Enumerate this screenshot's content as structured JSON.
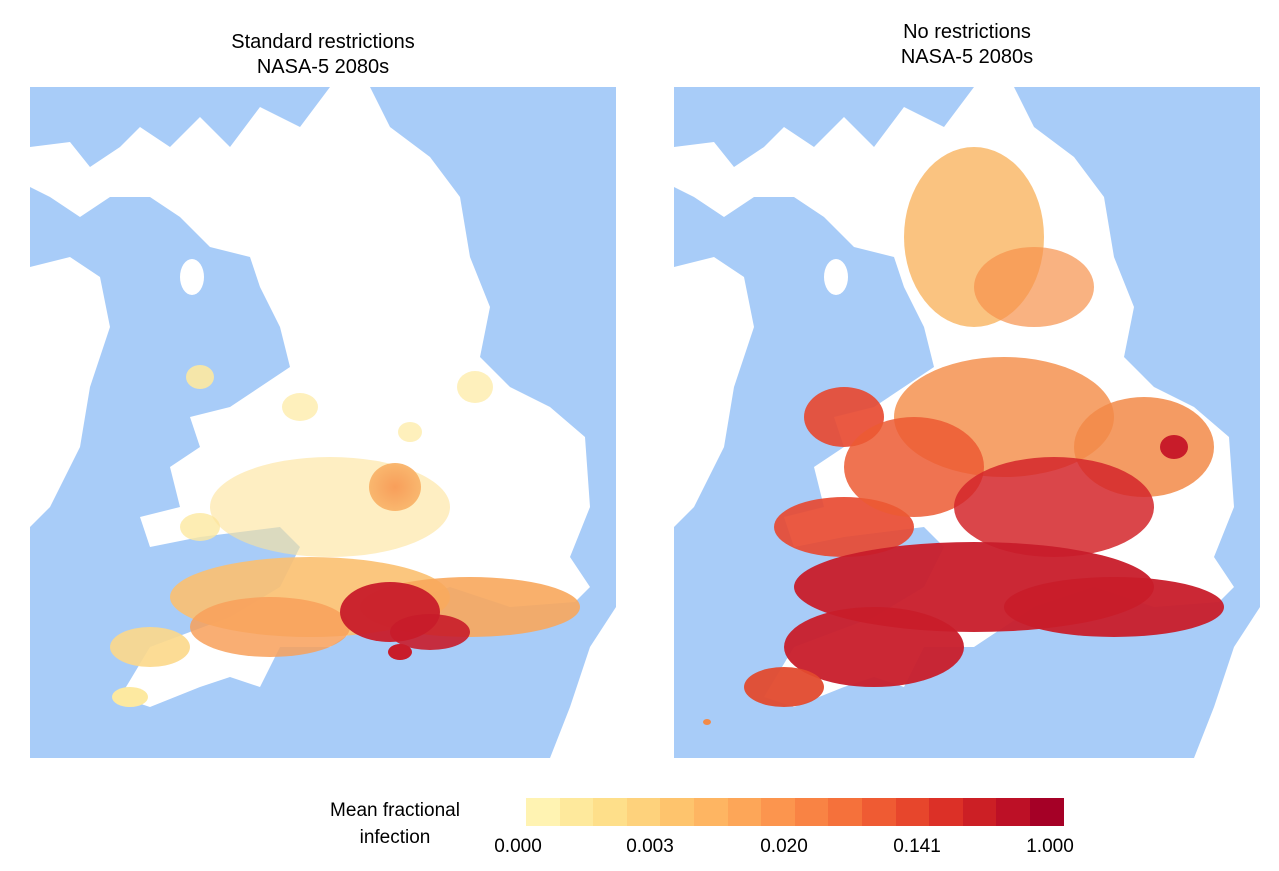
{
  "panels": [
    {
      "title_line1": "Standard restrictions",
      "title_line2": "NASA-5 2080s"
    },
    {
      "title_line1": "No restrictions",
      "title_line2": "NASA-5 2080s"
    }
  ],
  "legend": {
    "title_line1": "Mean fractional",
    "title_line2": "infection",
    "ticks": [
      "0.000",
      "0.003",
      "0.020",
      "0.141",
      "1.000"
    ],
    "colors": [
      "#fff3b2",
      "#fee99c",
      "#fedf8a",
      "#fed27c",
      "#fec46d",
      "#feb562",
      "#fda658",
      "#fc954e",
      "#f98344",
      "#f5713b",
      "#ef5b33",
      "#e7462c",
      "#dc3027",
      "#cc1f25",
      "#bd1026",
      "#a50026"
    ]
  },
  "colors": {
    "sea": "#a8ccf8",
    "land": "#ffffff"
  }
}
